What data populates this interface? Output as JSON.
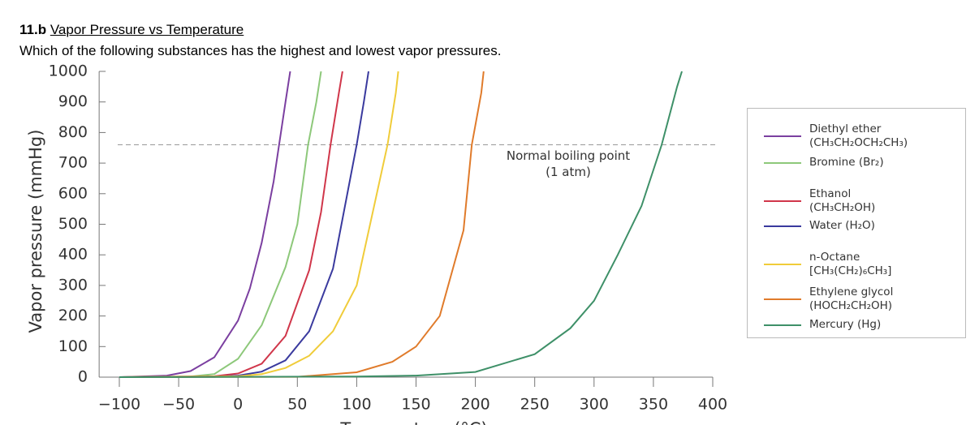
{
  "header": {
    "number": "11.b",
    "title": "Vapor Pressure vs Temperature"
  },
  "question": "Which of the following substances has the highest and lowest vapor pressures.",
  "chart_data": {
    "type": "line",
    "xlabel": "Temperature (°C)",
    "ylabel": "Vapor pressure (mmHg)",
    "annotation": "Normal boiling point\n(1 atm)",
    "reference_y": 760,
    "xlim": [
      -117,
      400
    ],
    "ylim": [
      0,
      1000
    ],
    "xticks": [
      {
        "value": -100,
        "label": "−100"
      },
      {
        "value": -50,
        "label": "−50"
      },
      0,
      50,
      100,
      150,
      200,
      250,
      300,
      350,
      400
    ],
    "yticks": [
      0,
      100,
      200,
      300,
      400,
      500,
      600,
      700,
      800,
      900,
      1000
    ],
    "series": [
      {
        "name": "Diethyl ether\n(CH₃CH₂OCH₂CH₃)",
        "color": "#7b3fa0",
        "x": [
          -100,
          -60,
          -40,
          -20,
          0,
          10,
          20,
          30,
          34.6,
          40,
          44
        ],
        "values": [
          0,
          5,
          20,
          65,
          185,
          290,
          440,
          640,
          760,
          900,
          1000
        ]
      },
      {
        "name": "Bromine (Br₂)",
        "color": "#8dc87a",
        "x": [
          -100,
          -40,
          -20,
          0,
          20,
          40,
          50,
          59,
          66,
          70
        ],
        "values": [
          0,
          2,
          10,
          60,
          170,
          360,
          500,
          760,
          900,
          1000
        ]
      },
      {
        "name": "Ethanol\n(CH₃CH₂OH)",
        "color": "#d0364a",
        "x": [
          -100,
          -20,
          0,
          20,
          40,
          60,
          70,
          78,
          85,
          88
        ],
        "values": [
          0,
          3,
          12,
          44,
          135,
          350,
          540,
          760,
          930,
          1000
        ]
      },
      {
        "name": "Water (H₂O)",
        "color": "#3a3a9e",
        "x": [
          -100,
          -20,
          0,
          20,
          40,
          60,
          80,
          100,
          106,
          110
        ],
        "values": [
          0,
          1,
          5,
          18,
          55,
          150,
          355,
          760,
          900,
          1000
        ]
      },
      {
        "name": "n-Octane\n[CH₃(CH₂)₆CH₃]",
        "color": "#f0cc3a",
        "x": [
          -100,
          0,
          20,
          40,
          60,
          80,
          100,
          126,
          133,
          135
        ],
        "values": [
          0,
          3,
          10,
          30,
          70,
          150,
          300,
          760,
          930,
          1000
        ]
      },
      {
        "name": "Ethylene glycol\n(HOCH₂CH₂OH)",
        "color": "#e07b2b",
        "x": [
          -100,
          50,
          100,
          130,
          150,
          170,
          190,
          197,
          205,
          207
        ],
        "values": [
          0,
          1,
          16,
          50,
          100,
          200,
          480,
          760,
          930,
          1000
        ]
      },
      {
        "name": "Mercury (Hg)",
        "color": "#3e9068",
        "x": [
          -100,
          100,
          150,
          200,
          250,
          280,
          300,
          320,
          340,
          357,
          370,
          374
        ],
        "values": [
          0,
          2,
          5,
          17,
          75,
          160,
          250,
          400,
          560,
          760,
          950,
          1000
        ]
      }
    ]
  }
}
